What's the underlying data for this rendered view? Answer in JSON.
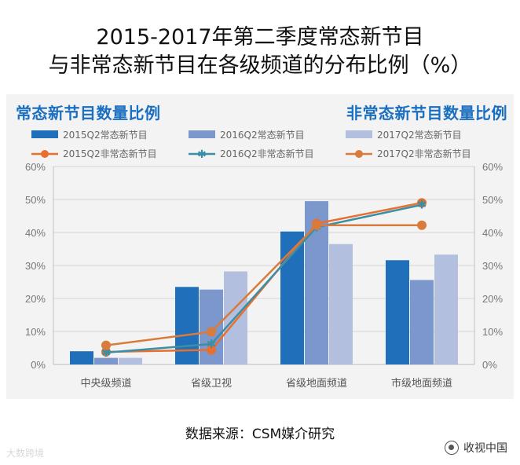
{
  "title_line1": "2015-2017年第二季度常态新节目",
  "title_line2": "与非常态新节目在各级频道的分布比例（%）",
  "subtitle_left": "常态新节目数量比例",
  "subtitle_right": "非常态新节目数量比例",
  "source": "数据来源：CSM媒介研究",
  "watermark_left": "大数跨境",
  "watermark_right": "收视中国",
  "chart_data": {
    "type": "bar",
    "categories": [
      "中央级频道",
      "省级卫视",
      "省级地面频道",
      "市级地面频道"
    ],
    "ylim": [
      0,
      60
    ],
    "yticks": [
      "0%",
      "10%",
      "20%",
      "30%",
      "40%",
      "50%",
      "60%"
    ],
    "grid": true,
    "legend_position": "top",
    "bar_series": [
      {
        "name": "2015Q2常态新节目",
        "color": "#1f6fba",
        "values": [
          4.0,
          23.5,
          40.3,
          31.6
        ]
      },
      {
        "name": "2016Q2常态新节目",
        "color": "#7b97cb",
        "values": [
          2.0,
          22.7,
          49.5,
          25.6
        ]
      },
      {
        "name": "2017Q2常态新节目",
        "color": "#b3bfdf",
        "values": [
          2.0,
          28.2,
          36.5,
          33.3
        ]
      }
    ],
    "line_series": [
      {
        "name": "2015Q2非常态新节目",
        "color": "#e86f2e",
        "marker": "dot",
        "values": [
          3.8,
          4.4,
          42.7,
          49.0
        ]
      },
      {
        "name": "2016Q2非常态新节目",
        "color": "#3a8fa6",
        "marker": "star",
        "values": [
          3.6,
          6.2,
          41.6,
          48.4
        ]
      },
      {
        "name": "2017Q2非常态新节目",
        "color": "#d97b3c",
        "marker": "dot",
        "values": [
          5.8,
          9.9,
          42.2,
          42.2
        ]
      }
    ]
  }
}
